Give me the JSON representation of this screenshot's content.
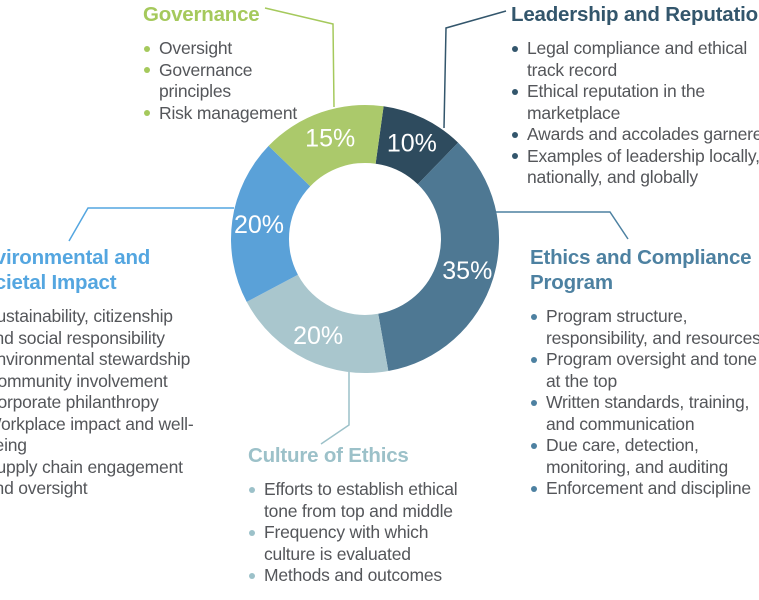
{
  "chart_data": {
    "type": "pie",
    "subtype": "donut",
    "title": "",
    "start_angle_deg": 8,
    "hole_ratio": 0.567,
    "value_suffix": "%",
    "value_label_color": "#ffffff",
    "legend": "none",
    "segments": [
      {
        "label": "Leadership and Reputation",
        "value": 10,
        "color": "#2e4b5e"
      },
      {
        "label": "Ethics and Compliance Program",
        "value": 35,
        "color": "#4e7893"
      },
      {
        "label": "Culture of Ethics",
        "value": 20,
        "color": "#a9c6cd"
      },
      {
        "label": "Environmental and Societal Impact",
        "value": 20,
        "color": "#5aa1d8"
      },
      {
        "label": "Governance",
        "value": 15,
        "color": "#abc96b"
      }
    ]
  },
  "callouts": {
    "governance": {
      "title": "Governance",
      "color": "#a5c95c",
      "bullets": [
        [
          "Oversight"
        ],
        [
          "Governance",
          "principles"
        ],
        [
          "Risk management"
        ]
      ]
    },
    "leadership": {
      "title": "Leadership and Reputation",
      "color": "#33566c",
      "bullets": [
        [
          "Legal compliance and ethical",
          "track record"
        ],
        [
          "Ethical reputation in the",
          "marketplace"
        ],
        [
          "Awards and accolades garnered"
        ],
        [
          "Examples of leadership locally,",
          "nationally, and globally"
        ]
      ]
    },
    "ethics": {
      "title": "Ethics and Compliance\nProgram",
      "color": "#4d81a1",
      "bullets": [
        [
          "Program structure,",
          "responsibility, and resources"
        ],
        [
          "Program oversight and tone",
          "at the top"
        ],
        [
          "Written standards, training,",
          "and communication"
        ],
        [
          "Due care, detection,",
          "monitoring, and auditing"
        ],
        [
          "Enforcement and discipline"
        ]
      ]
    },
    "environmental": {
      "title": "Environmental and\nSocietal Impact",
      "color": "#54a6e0",
      "bullets": [
        [
          "Sustainability, citizenship",
          "and social responsibility"
        ],
        [
          "Environmental stewardship"
        ],
        [
          "Community involvement"
        ],
        [
          "Corporate philanthropy"
        ],
        [
          "Workplace impact and well-",
          "being"
        ],
        [
          "Supply chain engagement",
          "and oversight"
        ]
      ]
    },
    "culture": {
      "title": "Culture of Ethics",
      "color": "#9cc1c9",
      "bullets": [
        [
          "Efforts to establish ethical",
          "tone from top and middle"
        ],
        [
          "Frequency with which",
          "culture is evaluated"
        ],
        [
          "Methods and outcomes"
        ]
      ]
    }
  },
  "body_text_color": "#54565a"
}
